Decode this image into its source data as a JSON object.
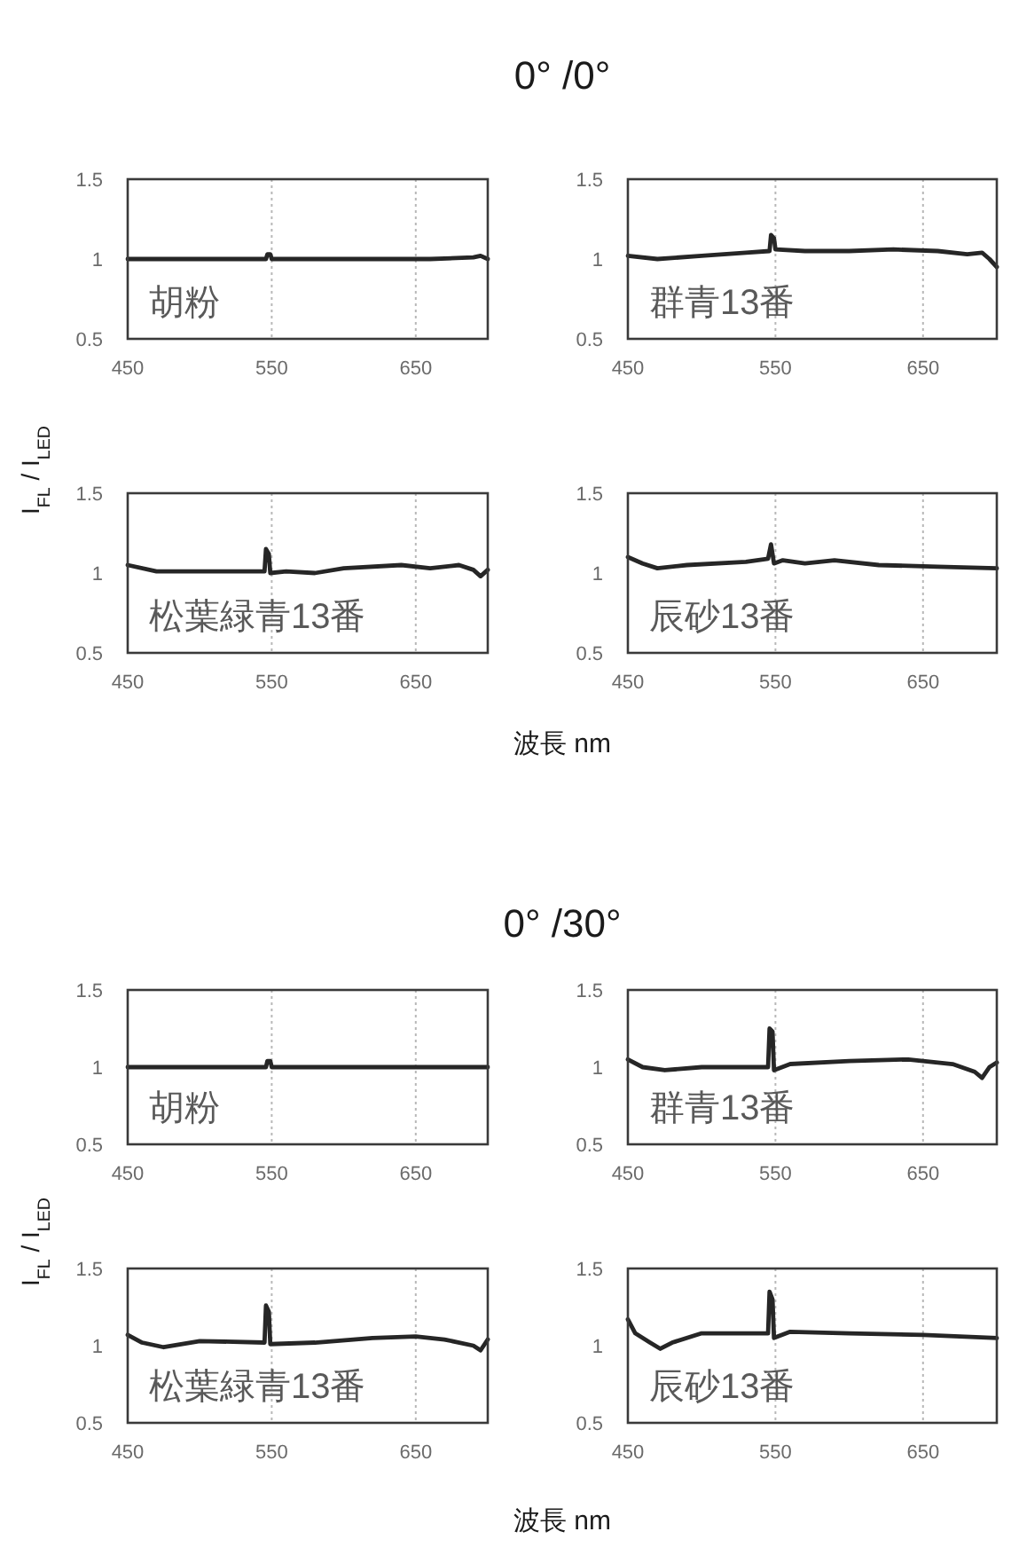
{
  "chart_data": [
    {
      "type": "line",
      "ylabel": "I$_{FL}$ / I$_{LED}$",
      "annotations": [
        "胡粉"
      ],
      "xlim": [
        450,
        700
      ],
      "ylim": [
        0.5,
        1.5
      ],
      "xticks": [
        450,
        550,
        650
      ],
      "yticks": [
        0.5,
        1,
        1.5
      ],
      "grid": "x",
      "series": [
        {
          "color": "#262626",
          "x": [
            450,
            480,
            510,
            540,
            546,
            547,
            549,
            550,
            580,
            620,
            660,
            690,
            695,
            700
          ],
          "values": [
            1.0,
            1.0,
            1.0,
            1.0,
            1.0,
            1.03,
            1.03,
            1.0,
            1.0,
            1.0,
            1.0,
            1.01,
            1.02,
            1.0
          ]
        }
      ]
    },
    {
      "type": "line",
      "title": "0° /0°",
      "annotations": [
        "群青13番"
      ],
      "xlim": [
        450,
        700
      ],
      "ylim": [
        0.5,
        1.5
      ],
      "xticks": [
        450,
        550,
        650
      ],
      "yticks": [
        0.5,
        1,
        1.5
      ],
      "grid": "x",
      "series": [
        {
          "color": "#262626",
          "x": [
            450,
            470,
            500,
            530,
            546,
            547,
            549,
            550,
            570,
            600,
            630,
            660,
            680,
            690,
            695,
            700
          ],
          "values": [
            1.02,
            1.0,
            1.02,
            1.04,
            1.05,
            1.15,
            1.13,
            1.06,
            1.05,
            1.05,
            1.06,
            1.05,
            1.03,
            1.04,
            1.0,
            0.95
          ]
        }
      ]
    },
    {
      "type": "line",
      "xlabel": "波長 nm",
      "annotations": [
        "松葉緑青13番"
      ],
      "xlim": [
        450,
        700
      ],
      "ylim": [
        0.5,
        1.5
      ],
      "xticks": [
        450,
        550,
        650
      ],
      "yticks": [
        0.5,
        1,
        1.5
      ],
      "grid": "x",
      "series": [
        {
          "color": "#262626",
          "x": [
            450,
            470,
            500,
            545,
            546,
            548,
            549,
            560,
            580,
            600,
            640,
            660,
            680,
            690,
            695,
            700
          ],
          "values": [
            1.05,
            1.01,
            1.01,
            1.01,
            1.15,
            1.12,
            1.0,
            1.01,
            1.0,
            1.03,
            1.05,
            1.03,
            1.05,
            1.02,
            0.98,
            1.02
          ]
        }
      ]
    },
    {
      "type": "line",
      "annotations": [
        "辰砂13番"
      ],
      "xlim": [
        450,
        700
      ],
      "ylim": [
        0.5,
        1.5
      ],
      "xticks": [
        450,
        550,
        650
      ],
      "yticks": [
        0.5,
        1,
        1.5
      ],
      "grid": "x",
      "series": [
        {
          "color": "#262626",
          "x": [
            450,
            460,
            470,
            490,
            530,
            545,
            547,
            549,
            555,
            570,
            590,
            620,
            660,
            700
          ],
          "values": [
            1.1,
            1.06,
            1.03,
            1.05,
            1.07,
            1.09,
            1.18,
            1.06,
            1.08,
            1.06,
            1.08,
            1.05,
            1.04,
            1.03
          ]
        }
      ]
    },
    {
      "type": "line",
      "title": "0° /30°",
      "ylabel": "I$_{FL}$ / I$_{LED}$",
      "annotations": [
        "胡粉"
      ],
      "xlim": [
        450,
        700
      ],
      "ylim": [
        0.5,
        1.5
      ],
      "xticks": [
        450,
        550,
        650
      ],
      "yticks": [
        0.5,
        1,
        1.5
      ],
      "grid": "x",
      "series": [
        {
          "color": "#262626",
          "x": [
            450,
            480,
            510,
            540,
            546,
            547,
            549,
            550,
            580,
            620,
            660,
            700
          ],
          "values": [
            1.0,
            1.0,
            1.0,
            1.0,
            1.0,
            1.04,
            1.04,
            1.0,
            1.0,
            1.0,
            1.0,
            1.0
          ]
        }
      ]
    },
    {
      "type": "line",
      "annotations": [
        "群青13番"
      ],
      "xlim": [
        450,
        700
      ],
      "ylim": [
        0.5,
        1.5
      ],
      "xticks": [
        450,
        550,
        650
      ],
      "yticks": [
        0.5,
        1,
        1.5
      ],
      "grid": "x",
      "series": [
        {
          "color": "#262626",
          "x": [
            450,
            460,
            475,
            500,
            545,
            546,
            548,
            549,
            560,
            600,
            640,
            670,
            685,
            690,
            695,
            700
          ],
          "values": [
            1.05,
            1.0,
            0.98,
            1.0,
            1.0,
            1.25,
            1.23,
            0.98,
            1.02,
            1.04,
            1.05,
            1.02,
            0.97,
            0.93,
            1.0,
            1.03
          ]
        }
      ]
    },
    {
      "type": "line",
      "xlabel": "波長 nm",
      "annotations": [
        "松葉緑青13番"
      ],
      "xlim": [
        450,
        700
      ],
      "ylim": [
        0.5,
        1.5
      ],
      "xticks": [
        450,
        550,
        650
      ],
      "yticks": [
        0.5,
        1,
        1.5
      ],
      "grid": "x",
      "series": [
        {
          "color": "#262626",
          "x": [
            450,
            460,
            475,
            500,
            545,
            546,
            548,
            549,
            580,
            620,
            650,
            670,
            690,
            695,
            700
          ],
          "values": [
            1.07,
            1.02,
            0.99,
            1.03,
            1.02,
            1.26,
            1.22,
            1.01,
            1.02,
            1.05,
            1.06,
            1.04,
            1.0,
            0.97,
            1.04
          ]
        }
      ]
    },
    {
      "type": "line",
      "annotations": [
        "辰砂13番"
      ],
      "xlim": [
        450,
        700
      ],
      "ylim": [
        0.5,
        1.5
      ],
      "xticks": [
        450,
        550,
        650
      ],
      "yticks": [
        0.5,
        1,
        1.5
      ],
      "grid": "x",
      "series": [
        {
          "color": "#262626",
          "x": [
            450,
            455,
            465,
            472,
            480,
            500,
            545,
            546,
            548,
            549,
            560,
            600,
            650,
            700
          ],
          "values": [
            1.17,
            1.08,
            1.02,
            0.98,
            1.02,
            1.08,
            1.08,
            1.35,
            1.3,
            1.05,
            1.09,
            1.08,
            1.07,
            1.05
          ]
        }
      ]
    }
  ]
}
